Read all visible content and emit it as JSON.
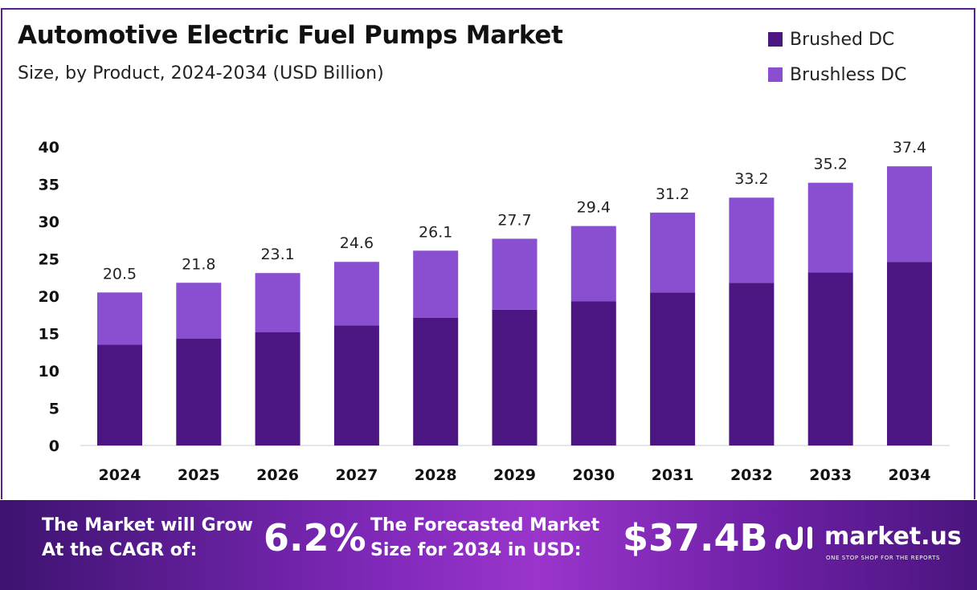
{
  "header": {
    "title": "Automotive Electric Fuel Pumps Market",
    "subtitle": "Size, by Product, 2024-2034 (USD Billion)"
  },
  "legend": {
    "items": [
      {
        "label": "Brushed DC",
        "color": "#4b1682"
      },
      {
        "label": "Brushless DC",
        "color": "#8a4fd0"
      }
    ]
  },
  "chart_data": {
    "type": "bar",
    "stacked": true,
    "categories": [
      "2024",
      "2025",
      "2026",
      "2027",
      "2028",
      "2029",
      "2030",
      "2031",
      "2032",
      "2033",
      "2034"
    ],
    "series": [
      {
        "name": "Brushed DC",
        "color": "#4b1682",
        "values": [
          13.5,
          14.3,
          15.2,
          16.1,
          17.1,
          18.2,
          19.3,
          20.5,
          21.8,
          23.2,
          24.6
        ]
      },
      {
        "name": "Brushless DC",
        "color": "#8a4fd0",
        "values": [
          7.0,
          7.5,
          7.9,
          8.5,
          9.0,
          9.5,
          10.1,
          10.7,
          11.4,
          12.0,
          12.8
        ]
      }
    ],
    "totals": [
      "20.5",
      "21.8",
      "23.1",
      "24.6",
      "26.1",
      "27.7",
      "29.4",
      "31.2",
      "33.2",
      "35.2",
      "37.4"
    ],
    "total_values": [
      20.5,
      21.8,
      23.1,
      24.6,
      26.1,
      27.7,
      29.4,
      31.2,
      33.2,
      35.2,
      37.4
    ],
    "ylim": [
      0,
      40
    ],
    "yticks": [
      "0",
      "5",
      "10",
      "15",
      "20",
      "25",
      "30",
      "35",
      "40"
    ],
    "ytick_values": [
      0,
      5,
      10,
      15,
      20,
      25,
      30,
      35,
      40
    ],
    "grid": false,
    "legend_position": "top-right"
  },
  "footer": {
    "cagr_text_line1": "The Market will Grow",
    "cagr_text_line2": "At the CAGR of:",
    "cagr_value": "6.2%",
    "forecast_text_line1": "The Forecasted Market",
    "forecast_text_line2": "Size for 2034 in USD:",
    "forecast_value": "$37.4B",
    "brand_name": "market.us",
    "brand_tagline": "ONE STOP SHOP FOR THE REPORTS"
  }
}
